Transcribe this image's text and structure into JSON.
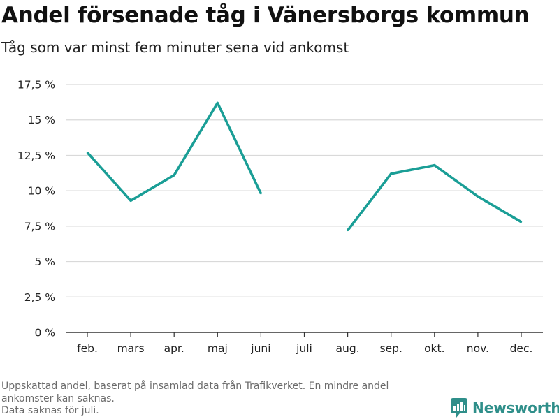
{
  "title": "Andel försenade tåg i Vänersborgs kommun",
  "subtitle": "Tåg som var minst fem minuter sena vid ankomst",
  "footnote": {
    "line1": "Uppskattad andel, baserat på insamlad data från Trafikverket. En mindre andel",
    "line2": "ankomster kan saknas.",
    "line3": "Data saknas för juli."
  },
  "brand": {
    "name": "Newsworthy",
    "icon": "newsworthy-logo-icon",
    "color": "#2f8f8a"
  },
  "colors": {
    "line": "#1a9e96",
    "grid": "#d9d9d9",
    "axis": "#333333"
  },
  "chart_data": {
    "type": "line",
    "categories": [
      "feb.",
      "mars",
      "apr.",
      "maj",
      "juni",
      "juli",
      "aug.",
      "sep.",
      "okt.",
      "nov.",
      "dec."
    ],
    "series": [
      {
        "values": [
          12.7,
          9.3,
          11.1,
          16.2,
          9.8,
          null,
          7.2,
          11.2,
          11.8,
          9.6,
          7.8
        ]
      }
    ],
    "y_ticks": [
      0,
      2.5,
      5,
      7.5,
      10,
      12.5,
      15,
      17.5
    ],
    "y_tick_labels": [
      "0 %",
      "2,5 %",
      "5 %",
      "7,5 %",
      "10 %",
      "12,5 %",
      "15 %",
      "17,5 %"
    ],
    "ylim": [
      0,
      17.5
    ],
    "grid": true,
    "legend": false
  }
}
